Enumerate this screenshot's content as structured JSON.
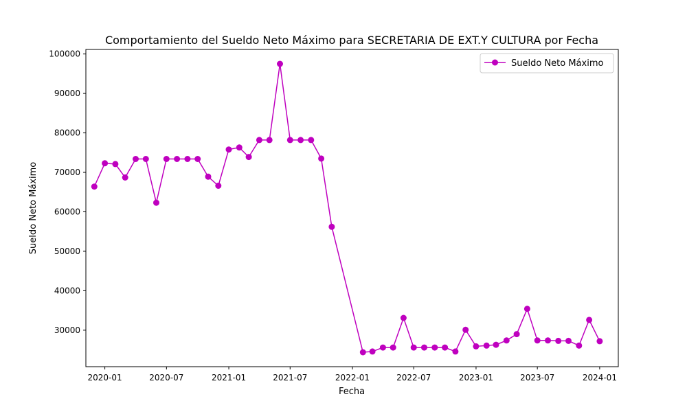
{
  "chart_data": {
    "type": "line",
    "title": "Comportamiento del Sueldo Neto Máximo para SECRETARIA DE EXT.Y CULTURA por Fecha",
    "xlabel": "Fecha",
    "ylabel": "Sueldo Neto Máximo",
    "x_ticks": [
      "2020-01",
      "2020-07",
      "2021-01",
      "2021-07",
      "2022-01",
      "2022-07",
      "2023-01",
      "2023-07",
      "2024-01"
    ],
    "y_ticks": [
      30000,
      40000,
      50000,
      60000,
      70000,
      80000,
      90000,
      100000
    ],
    "xlim": [
      "2019-11-06",
      "2024-02-25"
    ],
    "ylim": [
      20750,
      101150
    ],
    "grid": false,
    "legend_position": "upper right",
    "series": [
      {
        "name": "Sueldo Neto Máximo",
        "color": "#bf00bf",
        "marker": "circle",
        "x": [
          "2019-12-01",
          "2020-01-01",
          "2020-02-01",
          "2020-03-01",
          "2020-04-01",
          "2020-05-01",
          "2020-06-01",
          "2020-07-01",
          "2020-08-01",
          "2020-09-01",
          "2020-10-01",
          "2020-11-01",
          "2020-12-01",
          "2021-01-01",
          "2021-02-01",
          "2021-03-01",
          "2021-04-01",
          "2021-05-01",
          "2021-06-01",
          "2021-07-01",
          "2021-08-01",
          "2021-09-01",
          "2021-10-01",
          "2021-11-01",
          "2022-02-01",
          "2022-03-01",
          "2022-04-01",
          "2022-05-01",
          "2022-06-01",
          "2022-07-01",
          "2022-08-01",
          "2022-09-01",
          "2022-10-01",
          "2022-11-01",
          "2022-12-01",
          "2023-01-01",
          "2023-02-01",
          "2023-03-01",
          "2023-04-01",
          "2023-05-01",
          "2023-06-01",
          "2023-07-01",
          "2023-08-01",
          "2023-09-01",
          "2023-10-01",
          "2023-11-01",
          "2023-12-01",
          "2024-01-01"
        ],
        "y": [
          66400,
          72300,
          72100,
          68700,
          73400,
          73400,
          62300,
          73400,
          73400,
          73400,
          73400,
          68900,
          66600,
          75800,
          76300,
          73900,
          78200,
          78200,
          97500,
          78200,
          78200,
          78200,
          73500,
          56200,
          24400,
          24600,
          25600,
          25600,
          33100,
          25600,
          25600,
          25600,
          25600,
          24600,
          30100,
          25900,
          26100,
          26300,
          27400,
          29000,
          35400,
          27400,
          27400,
          27300,
          27300,
          26100,
          32600,
          27200
        ]
      }
    ]
  }
}
